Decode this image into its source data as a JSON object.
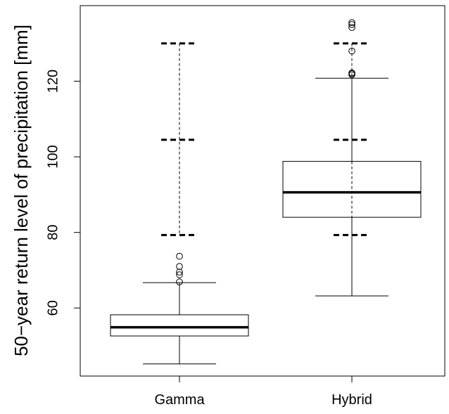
{
  "chart_data": {
    "type": "boxplot",
    "title": "",
    "xlabel": "",
    "ylabel": "50−year return level of precipitation [mm]",
    "ylim": [
      42,
      140
    ],
    "yticks": [
      60,
      80,
      100,
      120
    ],
    "categories": [
      "Gamma",
      "Hybrid"
    ],
    "boxes": [
      {
        "name": "Gamma",
        "whisker_low": 45.2,
        "q1": 52.6,
        "median": 54.9,
        "q3": 58.2,
        "whisker_high": 66.7,
        "outliers": [
          66.9,
          68.8,
          69.5,
          71.0,
          73.7
        ]
      },
      {
        "name": "Hybrid",
        "whisker_low": 63.2,
        "q1": 84.0,
        "median": 90.6,
        "q3": 98.8,
        "whisker_high": 120.8,
        "outliers": [
          121.7,
          122.0,
          122.2,
          128.0,
          134.2,
          135.0,
          135.5
        ]
      }
    ],
    "reference_lines": [
      {
        "y": 130.0,
        "style": "dashed"
      },
      {
        "y": 104.5,
        "style": "dashed"
      },
      {
        "y": 79.3,
        "style": "dashed"
      }
    ],
    "reference_connector_style": "dashed",
    "grid": false,
    "colors": {
      "box_fill": "#ffffff",
      "line": "#000000",
      "background": "#ffffff"
    }
  }
}
